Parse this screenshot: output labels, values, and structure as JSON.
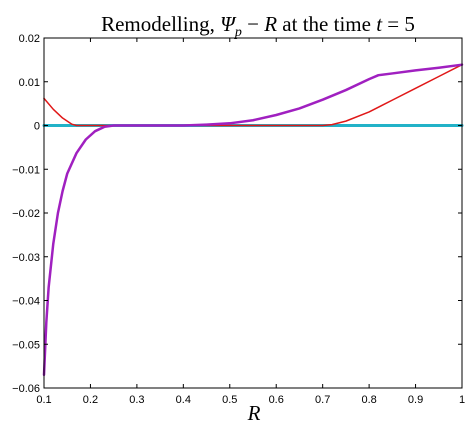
{
  "chart_data": {
    "type": "line",
    "title": {
      "prefix": "Remodelling, ",
      "psi": "Ψ",
      "sub": "p",
      "middle": " − ",
      "r": "R",
      "suffix": " at the time ",
      "t": "t",
      "value": " = 5"
    },
    "xlabel": "R",
    "ylabel": "",
    "xlim": [
      0.1,
      1.0
    ],
    "ylim": [
      -0.06,
      0.02
    ],
    "xticks": [
      0.1,
      0.2,
      0.3,
      0.4,
      0.5,
      0.6,
      0.7,
      0.8,
      0.9,
      1.0
    ],
    "xtick_labels": [
      "0.1",
      "0.2",
      "0.3",
      "0.4",
      "0.5",
      "0.6",
      "0.7",
      "0.8",
      "0.9",
      "1"
    ],
    "yticks": [
      0.02,
      0.01,
      0.0,
      -0.01,
      -0.02,
      -0.03,
      -0.04,
      -0.05,
      -0.06
    ],
    "ytick_labels": [
      "0.02",
      "0.01",
      "0",
      "−0.01",
      "−0.02",
      "−0.03",
      "−0.04",
      "−0.05",
      "−0.06"
    ],
    "grid": false,
    "series": [
      {
        "color": "#22b2c8",
        "width": 3,
        "x": [
          0.1,
          1.0
        ],
        "y": [
          0.0,
          0.0
        ]
      },
      {
        "color": "#e01818",
        "width": 1.5,
        "x": [
          0.1,
          0.12,
          0.14,
          0.16,
          0.17,
          0.2,
          0.3,
          0.4,
          0.5,
          0.6,
          0.7,
          0.72,
          0.75,
          0.8,
          0.85,
          0.9,
          0.95,
          1.0
        ],
        "y": [
          0.0062,
          0.0037,
          0.0017,
          0.0003,
          0.0,
          0.0,
          0.0,
          0.0,
          0.0,
          0.0,
          0.0,
          0.0002,
          0.001,
          0.0031,
          0.0058,
          0.0085,
          0.0112,
          0.0139
        ]
      },
      {
        "color": "#a020c0",
        "width": 2.5,
        "x": [
          0.1,
          0.105,
          0.11,
          0.12,
          0.13,
          0.14,
          0.15,
          0.17,
          0.19,
          0.21,
          0.23,
          0.25,
          0.3,
          0.4,
          0.45,
          0.5,
          0.55,
          0.6,
          0.65,
          0.7,
          0.75,
          0.8,
          0.82,
          0.85,
          0.9,
          0.95,
          1.0
        ],
        "y": [
          -0.057,
          -0.045,
          -0.037,
          -0.027,
          -0.02,
          -0.015,
          -0.011,
          -0.0063,
          -0.0032,
          -0.0013,
          -0.0003,
          0.0,
          0.0,
          0.0,
          0.0002,
          0.0005,
          0.0012,
          0.0024,
          0.0039,
          0.0059,
          0.0081,
          0.0106,
          0.0115,
          0.0119,
          0.0126,
          0.0132,
          0.0139
        ]
      }
    ]
  }
}
